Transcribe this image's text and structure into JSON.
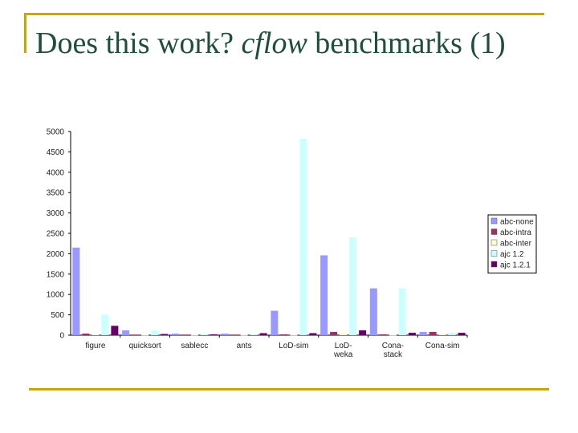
{
  "slide": {
    "title_prefix": "Does this work? ",
    "title_italic": "cflow",
    "title_suffix": " benchmarks (1)"
  },
  "chart_data": {
    "type": "bar",
    "ylim": [
      0,
      5000
    ],
    "yticks": [
      0,
      500,
      1000,
      1500,
      2000,
      2500,
      3000,
      3500,
      4000,
      4500,
      5000
    ],
    "grid": false,
    "legend_position": "right",
    "categories": [
      [
        "figure"
      ],
      [
        "quicksort"
      ],
      [
        "sablecc"
      ],
      [
        "ants"
      ],
      [
        "LoD-sim"
      ],
      [
        "LoD-",
        "weka"
      ],
      [
        "Cona-",
        "stack"
      ],
      [
        "Cona-sim"
      ]
    ],
    "series": [
      {
        "name": "abc-none",
        "color": "#9999ff",
        "values": [
          2150,
          120,
          40,
          40,
          600,
          1960,
          1150,
          80
        ]
      },
      {
        "name": "abc-intra",
        "color": "#993366",
        "values": [
          40,
          15,
          15,
          15,
          20,
          80,
          20,
          80
        ]
      },
      {
        "name": "abc-inter",
        "color": "#ffffcc",
        "values": [
          15,
          10,
          10,
          10,
          10,
          60,
          10,
          40
        ]
      },
      {
        "name": "ajc 1.2",
        "color": "#ccffff",
        "values": [
          500,
          120,
          30,
          20,
          4820,
          2400,
          1150,
          60
        ]
      },
      {
        "name": "ajc 1.2.1",
        "color": "#660066",
        "values": [
          230,
          30,
          20,
          50,
          50,
          120,
          60,
          60
        ]
      }
    ]
  }
}
